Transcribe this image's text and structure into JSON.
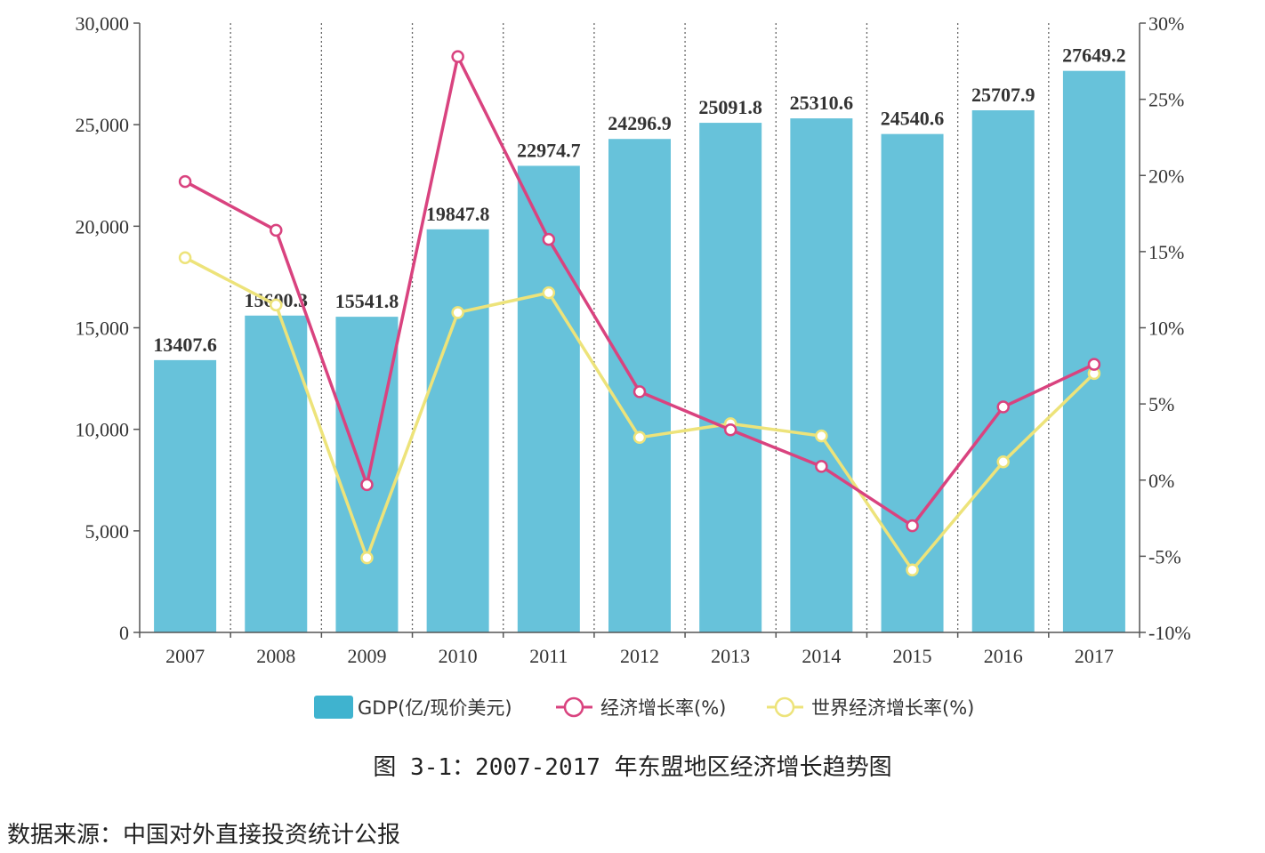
{
  "chart_data": {
    "type": "bar+line",
    "categories": [
      "2007",
      "2008",
      "2009",
      "2010",
      "2011",
      "2012",
      "2013",
      "2014",
      "2015",
      "2016",
      "2017"
    ],
    "bar_series": {
      "name": "GDP(亿/现价美元)",
      "values": [
        13407.6,
        15600.3,
        15541.8,
        19847.8,
        22974.7,
        24296.9,
        25091.8,
        25310.6,
        24540.6,
        25707.9,
        27649.2
      ],
      "labels": [
        "13407.6",
        "15600.3",
        "15541.8",
        "19847.8",
        "22974.7",
        "24296.9",
        "25091.8",
        "25310.6",
        "24540.6",
        "25707.9",
        "27649.2"
      ],
      "color": "#67c2da"
    },
    "line_series": [
      {
        "name": "经济增长率(%)",
        "color": "#d9437f",
        "values": [
          19.6,
          16.4,
          -0.3,
          27.8,
          15.8,
          5.8,
          3.3,
          0.9,
          -3.0,
          4.8,
          7.6
        ]
      },
      {
        "name": "世界经济增长率(%)",
        "color": "#ede37a",
        "values": [
          14.6,
          11.5,
          -5.1,
          11.0,
          12.3,
          2.8,
          3.7,
          2.9,
          -5.9,
          1.2,
          7.0
        ]
      }
    ],
    "y_left": {
      "min": 0,
      "max": 30000,
      "ticks": [
        "0",
        "5,000",
        "10,000",
        "15,000",
        "20,000",
        "25,000",
        "30,000"
      ]
    },
    "y_right": {
      "min": -10,
      "max": 30,
      "ticks": [
        "-10%",
        "-5%",
        "0%",
        "5%",
        "10%",
        "15%",
        "20%",
        "25%",
        "30%"
      ]
    },
    "legend_position": "bottom",
    "grid": "vertical dotted"
  },
  "caption": "图 3-1：2007-2017 年东盟地区经济增长趋势图",
  "source": "数据来源：中国对外直接投资统计公报"
}
